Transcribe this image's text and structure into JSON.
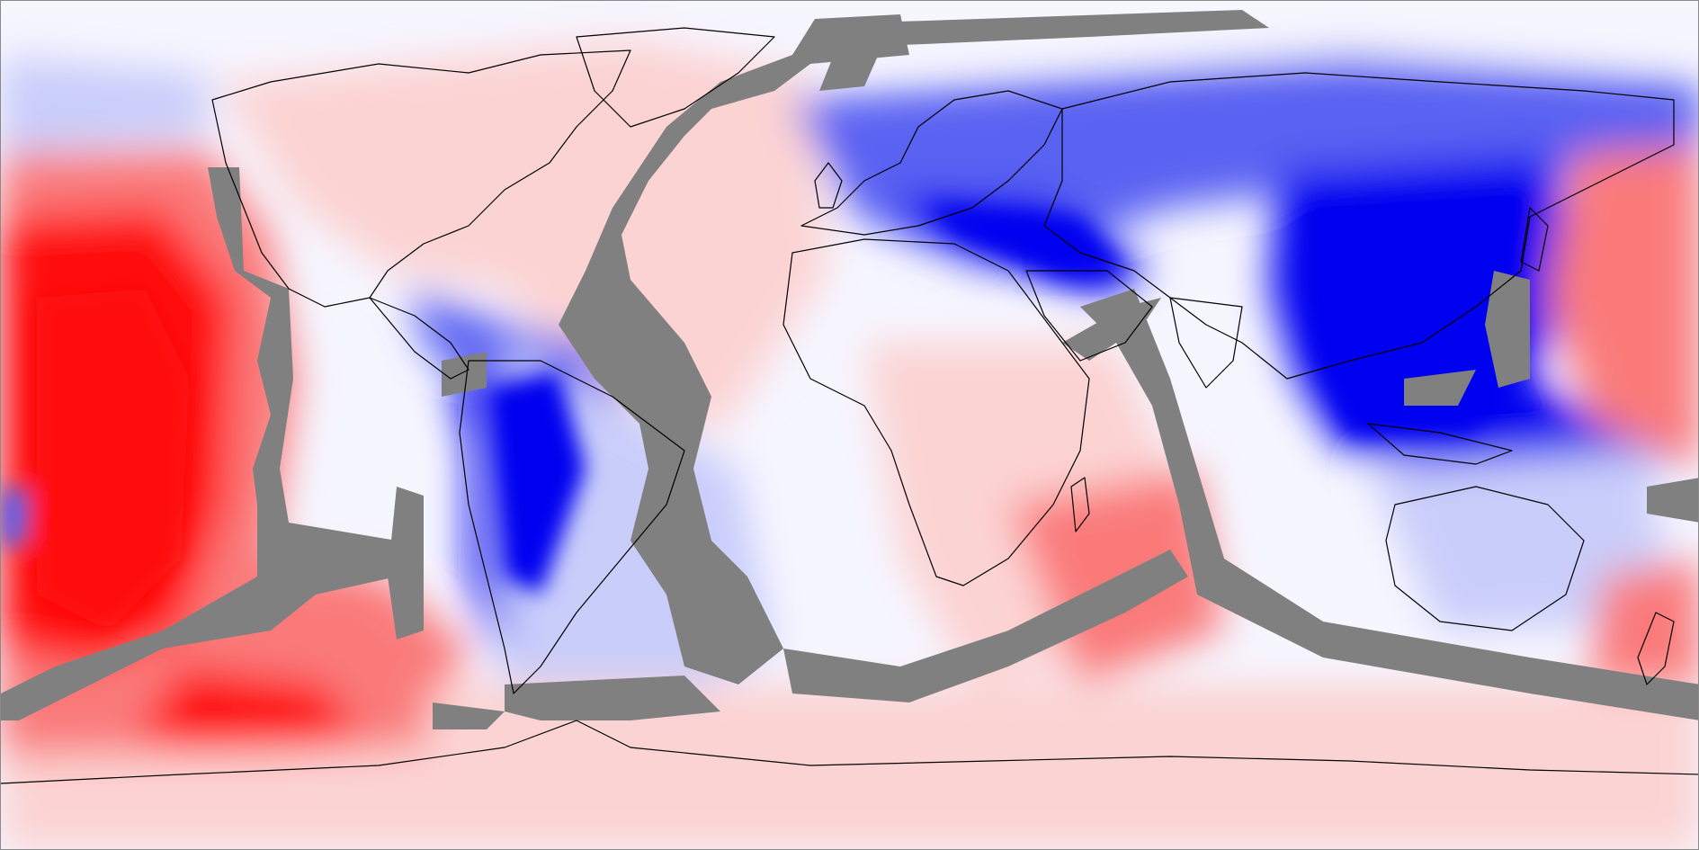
{
  "map": {
    "projection": "equirectangular",
    "extent": {
      "lon": [
        -180,
        180
      ],
      "lat": [
        -90,
        90
      ]
    },
    "grid": false,
    "colorbar": false,
    "legend": "none",
    "colors": {
      "deep_blue": "#0000f0",
      "blue": "#5a62f2",
      "light_blue": "#c9cdfa",
      "neutral": "#f6f6ff",
      "light_red": "#fcd3d3",
      "red": "#fa7a7a",
      "deep_red": "#ff0a0a",
      "mask_gray": "#808080",
      "coastline": "#000000"
    },
    "layers": [
      "diverging-field",
      "masked-bands",
      "coastlines"
    ]
  }
}
